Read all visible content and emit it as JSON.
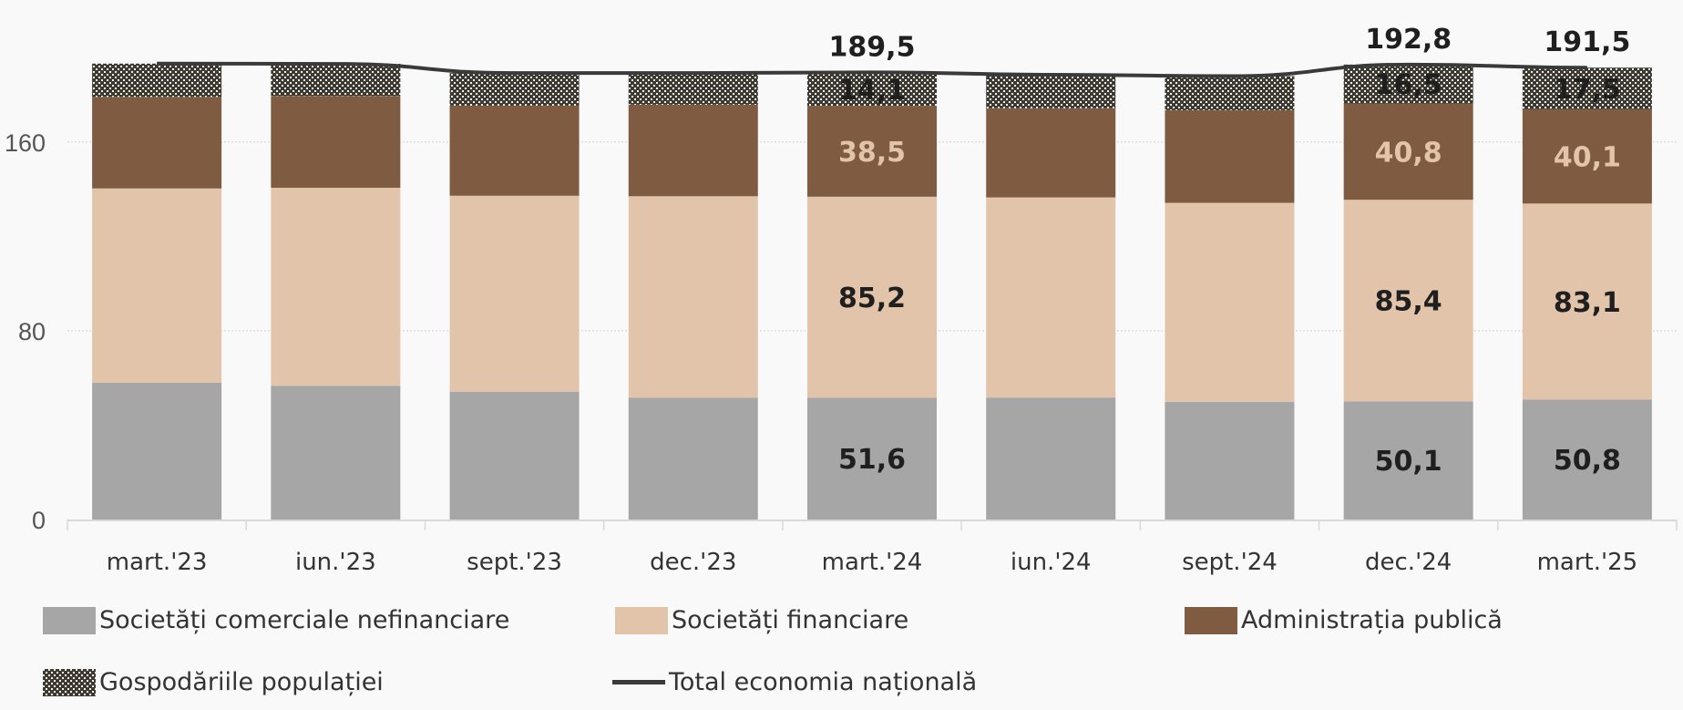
{
  "colors": {
    "nefinanciare": "#a6a6a6",
    "financiare": "#e2c4aa",
    "administratia": "#7f5b42",
    "gospodarii_dark": "#3d3a33",
    "gospodarii_light": "#f4efe6",
    "total_line": "#3a3a3a",
    "label_dark": "#1f1f1f",
    "label_light": "#e2c4aa"
  },
  "legend": {
    "nefinanciare": "Societăți comerciale nefinanciare",
    "financiare": "Societăți financiare",
    "administratia": "Administrația publică",
    "gospodarii": "Gospodăriile populației",
    "total": "Total economia națională"
  },
  "chart_data": {
    "type": "bar",
    "stacked": true,
    "title": "",
    "xlabel": "",
    "ylabel": "",
    "ylim": [
      0,
      200
    ],
    "yticks": [
      0,
      80,
      160
    ],
    "ytick_labels": [
      "0",
      "80",
      "160"
    ],
    "grid": true,
    "legend_position": "bottom",
    "categories": [
      "mart.'23",
      "iun.'23",
      "sept.'23",
      "dec.'23",
      "mart.'24",
      "iun.'24",
      "sept.'24",
      "dec.'24",
      "mart.'25"
    ],
    "series": [
      {
        "key": "nefinanciare",
        "name": "Societăți comerciale nefinanciare",
        "values": [
          58.0,
          56.7,
          54.2,
          51.6,
          51.6,
          51.7,
          49.9,
          50.1,
          50.8
        ]
      },
      {
        "key": "financiare",
        "name": "Societăți financiare",
        "values": [
          82.3,
          83.9,
          83.0,
          85.4,
          85.2,
          84.8,
          84.3,
          85.4,
          83.1
        ]
      },
      {
        "key": "administratia",
        "name": "Administrația publică",
        "values": [
          38.8,
          38.9,
          38.2,
          38.8,
          38.5,
          37.8,
          39.3,
          40.8,
          40.1
        ]
      },
      {
        "key": "gospodarii",
        "name": "Gospodăriile populației",
        "values": [
          14.1,
          13.6,
          13.8,
          13.4,
          14.1,
          14.2,
          14.4,
          16.5,
          17.5
        ]
      }
    ],
    "line": {
      "key": "total",
      "name": "Total economia națională",
      "type": "line",
      "values": [
        193.2,
        193.1,
        189.2,
        189.2,
        189.5,
        188.5,
        187.9,
        192.8,
        191.5
      ]
    },
    "data_labels": [
      {
        "category_index": 4,
        "series": "nefinanciare",
        "text": "51,6"
      },
      {
        "category_index": 4,
        "series": "financiare",
        "text": "85,2"
      },
      {
        "category_index": 4,
        "series": "administratia",
        "text": "38,5"
      },
      {
        "category_index": 4,
        "series": "gospodarii",
        "text": "14,1"
      },
      {
        "category_index": 4,
        "series": "total",
        "text": "189,5"
      },
      {
        "category_index": 7,
        "series": "nefinanciare",
        "text": "50,1"
      },
      {
        "category_index": 7,
        "series": "financiare",
        "text": "85,4"
      },
      {
        "category_index": 7,
        "series": "administratia",
        "text": "40,8"
      },
      {
        "category_index": 7,
        "series": "gospodarii",
        "text": "16,5"
      },
      {
        "category_index": 7,
        "series": "total",
        "text": "192,8"
      },
      {
        "category_index": 8,
        "series": "nefinanciare",
        "text": "50,8"
      },
      {
        "category_index": 8,
        "series": "financiare",
        "text": "83,1"
      },
      {
        "category_index": 8,
        "series": "administratia",
        "text": "40,1"
      },
      {
        "category_index": 8,
        "series": "gospodarii",
        "text": "17,5"
      },
      {
        "category_index": 8,
        "series": "total",
        "text": "191,5"
      }
    ]
  }
}
